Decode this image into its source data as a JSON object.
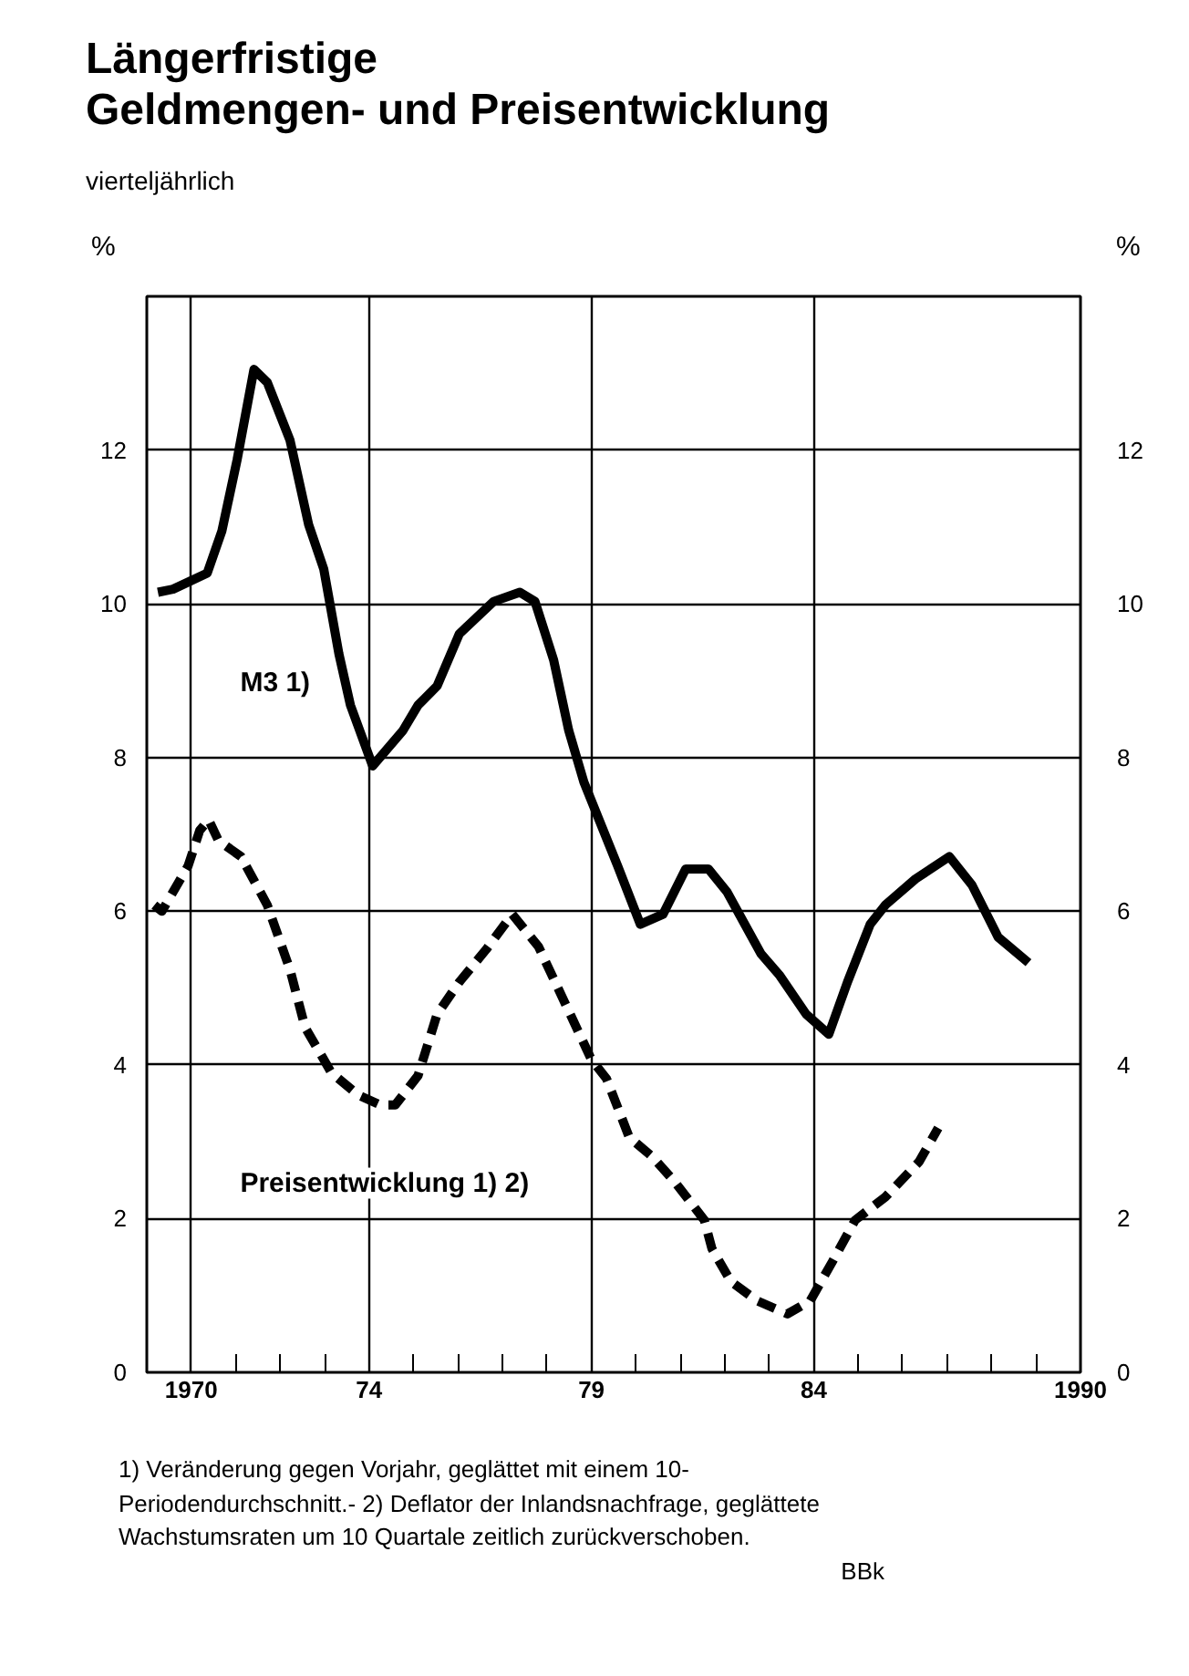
{
  "chart_data": {
    "type": "line",
    "title": "Längerfristige\nGeldmengen- und Preisentwicklung",
    "subtitle": "vierteljährlich",
    "ylabel": "%",
    "y2label": "%",
    "xlim": [
      1969,
      1990
    ],
    "xticks": [
      {
        "value": 1970,
        "label": "1970"
      },
      {
        "value": 1971,
        "label": null
      },
      {
        "value": 1972,
        "label": null
      },
      {
        "value": 1973,
        "label": null
      },
      {
        "value": 1974,
        "label": "74"
      },
      {
        "value": 1975,
        "label": null
      },
      {
        "value": 1976,
        "label": null
      },
      {
        "value": 1977,
        "label": null
      },
      {
        "value": 1978,
        "label": null
      },
      {
        "value": 1979,
        "label": "79"
      },
      {
        "value": 1980,
        "label": null
      },
      {
        "value": 1981,
        "label": null
      },
      {
        "value": 1982,
        "label": null
      },
      {
        "value": 1983,
        "label": null
      },
      {
        "value": 1984,
        "label": "84"
      },
      {
        "value": 1985,
        "label": null
      },
      {
        "value": 1986,
        "label": null
      },
      {
        "value": 1987,
        "label": null
      },
      {
        "value": 1988,
        "label": null
      },
      {
        "value": 1989,
        "label": null
      },
      {
        "value": 1990,
        "label": "1990"
      }
    ],
    "ylim": [
      0,
      14
    ],
    "yticks": [
      0,
      2,
      4,
      6,
      8,
      10,
      12
    ],
    "y2lim": [
      0,
      14
    ],
    "y2ticks": [
      0,
      2,
      4,
      6,
      8,
      10,
      12
    ],
    "grid": true,
    "series": [
      {
        "name": "M3 1)",
        "color": "#000000",
        "line_style": "solid",
        "x": [
          1969.25,
          1969.59,
          1970.36,
          1970.69,
          1971.03,
          1971.41,
          1971.71,
          1972.22,
          1972.64,
          1972.98,
          1973.32,
          1973.58,
          1974.08,
          1974.76,
          1975.1,
          1975.53,
          1976.03,
          1976.8,
          1977.39,
          1977.73,
          1978.15,
          1978.49,
          1978.83,
          1979.59,
          1980.1,
          1980.61,
          1981.12,
          1981.63,
          1982.05,
          1982.81,
          1983.24,
          1983.83,
          1984.34,
          1984.76,
          1985.27,
          1985.61,
          1986.29,
          1987.05,
          1987.56,
          1988.15,
          1988.83
        ],
        "values": [
          10.15,
          10.19,
          10.4,
          10.95,
          11.87,
          13.05,
          12.88,
          12.13,
          11.03,
          10.45,
          9.35,
          8.68,
          7.89,
          8.35,
          8.68,
          8.93,
          9.61,
          10.03,
          10.15,
          10.03,
          9.27,
          8.35,
          7.68,
          6.59,
          5.83,
          5.96,
          6.55,
          6.55,
          6.25,
          5.45,
          5.16,
          4.66,
          4.4,
          5.08,
          5.83,
          6.08,
          6.42,
          6.71,
          6.34,
          5.66,
          5.33
        ]
      },
      {
        "name": "Preisentwicklung 1) 2)",
        "color": "#000000",
        "line_style": "dashed",
        "x": [
          1969.17,
          1969.34,
          1969.93,
          1970.19,
          1970.39,
          1970.61,
          1971.12,
          1971.71,
          1972.22,
          1972.56,
          1973.15,
          1973.75,
          1974.25,
          1974.59,
          1975.1,
          1975.53,
          1976.03,
          1976.63,
          1977.22,
          1977.81,
          1978.32,
          1979.0,
          1979.34,
          1979.85,
          1980.36,
          1980.86,
          1981.54,
          1981.71,
          1982.14,
          1982.73,
          1983.41,
          1983.92,
          1984.42,
          1984.93,
          1985.61,
          1986.37,
          1986.8
        ],
        "values": [
          6.08,
          6.0,
          6.59,
          7.05,
          7.19,
          6.92,
          6.71,
          6.08,
          5.24,
          4.49,
          3.9,
          3.61,
          3.48,
          3.48,
          3.86,
          4.66,
          5.08,
          5.5,
          5.96,
          5.54,
          4.91,
          4.07,
          3.82,
          3.06,
          2.81,
          2.49,
          1.98,
          1.61,
          1.18,
          0.93,
          0.76,
          0.93,
          1.44,
          1.98,
          2.28,
          2.74,
          3.18
        ]
      }
    ],
    "annotations": [
      "1) Veränderung gegen Vorjahr, geglättet mit einem 10-Periodendurchschnitt.- 2) Deflator der Inlandsnachfrage, geglättete Wachstumsraten um 10 Quartale zeitlich zurückverschoben.",
      "BBk"
    ]
  }
}
